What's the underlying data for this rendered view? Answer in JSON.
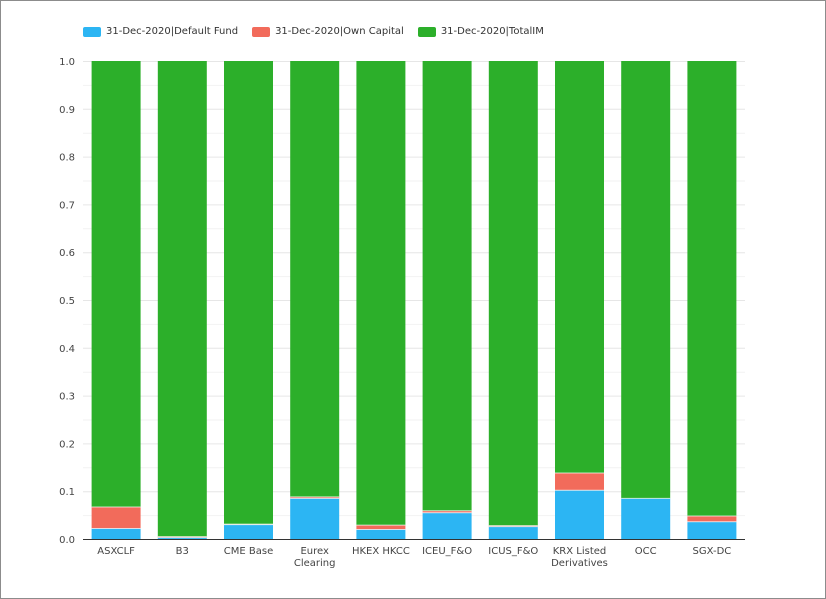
{
  "chart_data": {
    "type": "bar",
    "stacked": true,
    "categories": [
      [
        "ASXCLF"
      ],
      [
        "B3"
      ],
      [
        "CME Base"
      ],
      [
        "Eurex",
        "Clearing"
      ],
      [
        "HKEX HKCC"
      ],
      [
        "ICEU_F&O"
      ],
      [
        "ICUS_F&O"
      ],
      [
        "KRX Listed",
        "Derivatives"
      ],
      [
        "OCC"
      ],
      [
        "SGX-DC"
      ]
    ],
    "series": [
      {
        "name": "31-Dec-2020|Default Fund",
        "color": "#2cb5f3",
        "values": [
          0.022,
          0.003,
          0.03,
          0.085,
          0.02,
          0.055,
          0.026,
          0.102,
          0.085,
          0.036
        ]
      },
      {
        "name": "31-Dec-2020|Own Capital",
        "color": "#f26b5b",
        "values": [
          0.045,
          0.002,
          0.001,
          0.003,
          0.009,
          0.004,
          0.002,
          0.036,
          0.0,
          0.012
        ]
      },
      {
        "name": "31-Dec-2020|TotalIM",
        "color": "#2caf2a",
        "values": [
          0.933,
          0.995,
          0.969,
          0.912,
          0.971,
          0.941,
          0.972,
          0.862,
          0.915,
          0.952
        ]
      }
    ],
    "ylim": [
      0,
      1.0
    ],
    "yticks": [
      "0.0",
      "0.1",
      "0.2",
      "0.3",
      "0.4",
      "0.5",
      "0.6",
      "0.7",
      "0.8",
      "0.9",
      "1.0"
    ],
    "grid": true,
    "legend_position": "top-left"
  }
}
